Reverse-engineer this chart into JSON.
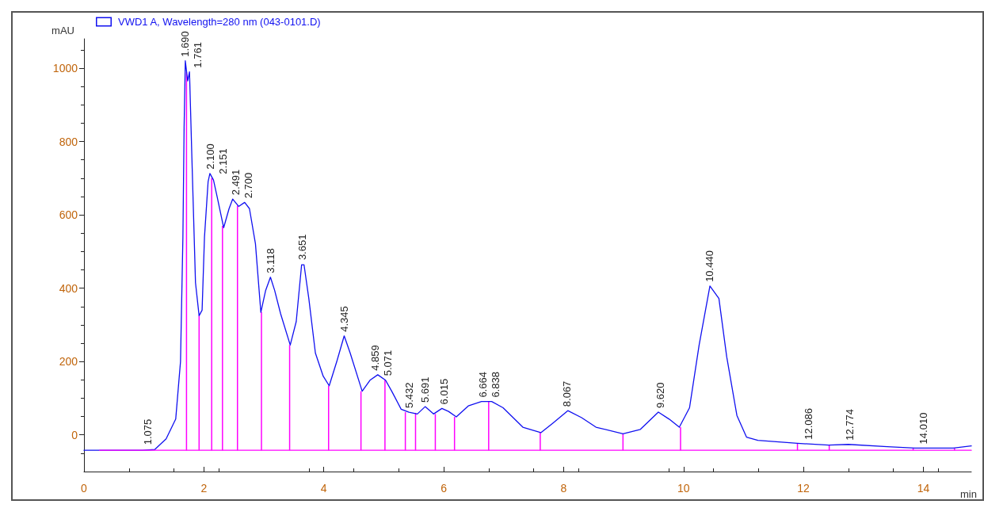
{
  "chart_data": {
    "type": "line",
    "xlabel": "min",
    "ylabel": "mAU",
    "legend": "top left",
    "xlim": [
      0,
      14.8
    ],
    "xticks": [
      0,
      2,
      4,
      6,
      8,
      10,
      12,
      14
    ],
    "ylim": [
      -100,
      1080
    ],
    "yticks": [
      0,
      200,
      400,
      600,
      800,
      1000
    ],
    "series": [
      {
        "name": "VWD1 A, Wavelength=280 nm (043-0101.D)",
        "color": "#1010f0",
        "x": [
          0,
          0.98,
          1.18,
          1.37,
          1.53,
          1.61,
          1.65,
          1.67,
          1.69,
          1.73,
          1.76,
          1.8,
          1.86,
          1.92,
          1.97,
          2.01,
          2.07,
          2.1,
          2.16,
          2.22,
          2.33,
          2.42,
          2.48,
          2.58,
          2.68,
          2.76,
          2.86,
          2.95,
          3.03,
          3.11,
          3.18,
          3.28,
          3.44,
          3.54,
          3.63,
          3.67,
          3.75,
          3.86,
          3.99,
          4.09,
          4.22,
          4.34,
          4.44,
          4.64,
          4.77,
          4.9,
          5.03,
          5.14,
          5.29,
          5.42,
          5.56,
          5.69,
          5.83,
          5.97,
          6.08,
          6.21,
          6.41,
          6.63,
          6.8,
          6.99,
          7.32,
          7.62,
          7.82,
          8.07,
          8.3,
          8.54,
          8.99,
          9.28,
          9.58,
          9.76,
          9.93,
          10.1,
          10.26,
          10.44,
          10.59,
          10.72,
          10.89,
          11.05,
          11.24,
          11.9,
          12.42,
          12.75,
          13.4,
          13.86,
          14.5,
          14.8
        ],
        "values": [
          -42,
          -42,
          -40,
          -11,
          43,
          200,
          540,
          840,
          1020,
          965,
          990,
          755,
          415,
          325,
          340,
          540,
          690,
          713,
          695,
          650,
          565,
          617,
          643,
          623,
          634,
          617,
          521,
          334,
          394,
          430,
          394,
          330,
          245,
          309,
          464,
          464,
          372,
          223,
          160,
          134,
          202,
          270,
          223,
          119,
          149,
          164,
          149,
          117,
          70,
          62,
          57,
          77,
          57,
          72,
          64,
          49,
          79,
          91,
          91,
          74,
          21,
          6,
          32,
          66,
          47,
          21,
          3,
          15,
          62,
          43,
          21,
          74,
          245,
          406,
          372,
          213,
          53,
          -6,
          -15,
          -23,
          -28,
          -26,
          -32,
          -36,
          -36,
          -30
        ]
      },
      {
        "type": "line",
        "color": "#ff00ff",
        "x": [
          0.26,
          14.8
        ],
        "values": [
          -42,
          -42
        ]
      },
      {
        "type": "bar",
        "color": "#ff00ff",
        "x": [
          1.71,
          1.92,
          2.13,
          2.31,
          2.56,
          2.96,
          3.43,
          4.08,
          4.62,
          5.02,
          5.36,
          5.53,
          5.86,
          6.18,
          6.75,
          7.61,
          8.99,
          9.95,
          11.9,
          12.43,
          13.83,
          14.52
        ],
        "base": [
          -42,
          -42,
          -42,
          -42,
          -42,
          -42,
          -42,
          -42,
          -42,
          -42,
          -42,
          -42,
          -42,
          -42,
          -42,
          -42,
          -42,
          -42,
          -42,
          -42,
          -42,
          -42
        ],
        "values": [
          1032,
          367,
          742,
          612,
          667,
          377,
          287,
          176,
          161,
          192,
          104,
          102,
          99,
          91,
          133,
          48,
          45,
          63,
          19,
          14,
          6,
          6
        ]
      }
    ],
    "annotations": [
      {
        "text": "1.075",
        "x": 1.075,
        "y": -38
      },
      {
        "text": "1.690",
        "x": 1.69,
        "y": 1020
      },
      {
        "text": "1.761",
        "x": 1.761,
        "y": 990
      },
      {
        "text": "2.100",
        "x": 2.1,
        "y": 713
      },
      {
        "text": "2.151",
        "x": 2.151,
        "y": 700
      },
      {
        "text": "2.491",
        "x": 2.491,
        "y": 643
      },
      {
        "text": "2.700",
        "x": 2.7,
        "y": 634
      },
      {
        "text": "3.118",
        "x": 3.118,
        "y": 430
      },
      {
        "text": "3.651",
        "x": 3.651,
        "y": 466
      },
      {
        "text": "4.345",
        "x": 4.345,
        "y": 270
      },
      {
        "text": "4.859",
        "x": 4.859,
        "y": 164
      },
      {
        "text": "5.071",
        "x": 5.071,
        "y": 150
      },
      {
        "text": "5.432",
        "x": 5.432,
        "y": 62
      },
      {
        "text": "5.691",
        "x": 5.691,
        "y": 77
      },
      {
        "text": "6.015",
        "x": 6.015,
        "y": 72
      },
      {
        "text": "6.664",
        "x": 6.664,
        "y": 91
      },
      {
        "text": "6.838",
        "x": 6.838,
        "y": 91
      },
      {
        "text": "8.067",
        "x": 8.067,
        "y": 66
      },
      {
        "text": "9.620",
        "x": 9.62,
        "y": 62
      },
      {
        "text": "10.440",
        "x": 10.44,
        "y": 406
      },
      {
        "text": "12.086",
        "x": 12.086,
        "y": -24
      },
      {
        "text": "12.774",
        "x": 12.774,
        "y": -26
      },
      {
        "text": "14.010",
        "x": 14.01,
        "y": -36
      }
    ]
  }
}
